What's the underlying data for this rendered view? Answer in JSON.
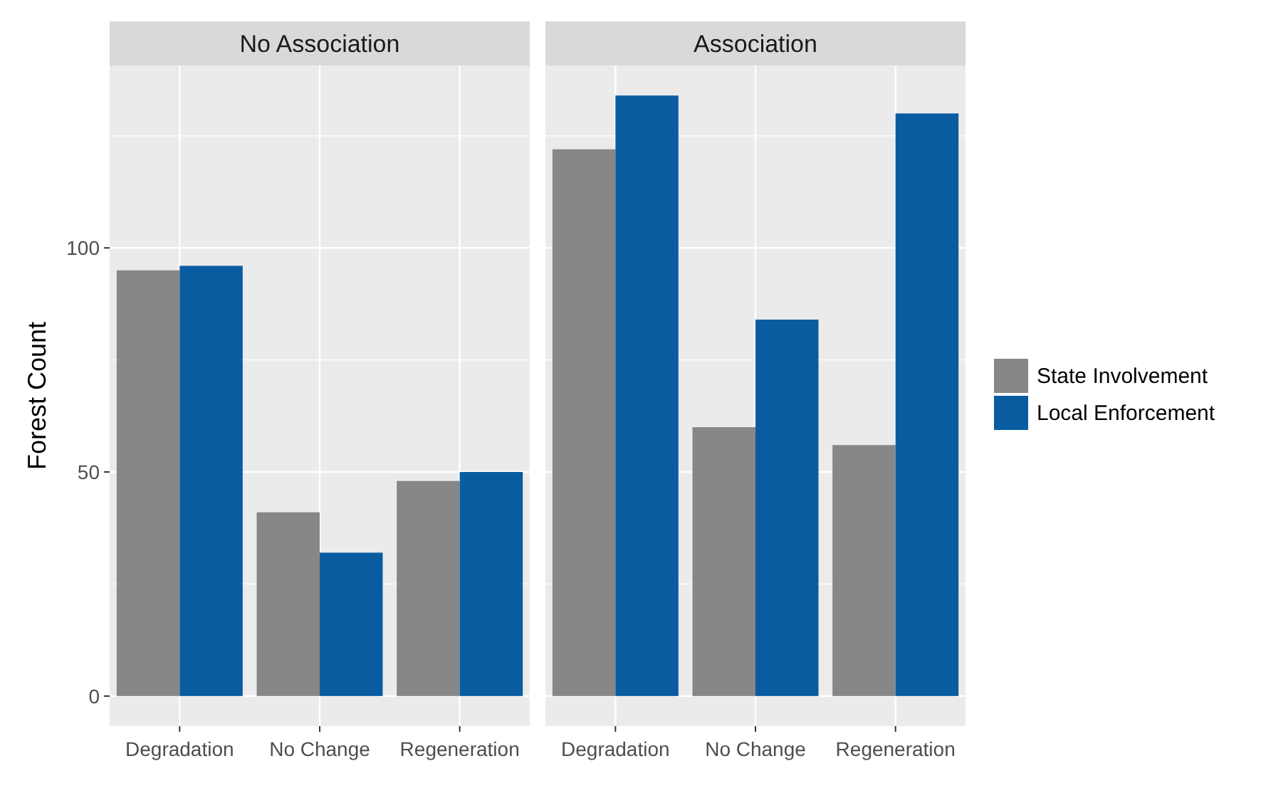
{
  "chart_data": [
    {
      "type": "bar",
      "title": "No Association",
      "ylabel": "Forest Count",
      "categories": [
        "Degradation",
        "No Change",
        "Regeneration"
      ],
      "series": [
        {
          "color": "#878787",
          "values": [
            95,
            41,
            48
          ]
        },
        {
          "color": "#0a5ca0",
          "values": [
            96,
            32,
            50
          ]
        }
      ],
      "ylim": [
        -6.7,
        140.7
      ],
      "yticks": [
        0,
        50,
        100
      ],
      "grid": true,
      "legend": false
    },
    {
      "type": "bar",
      "title": "Association",
      "categories": [
        "Degradation",
        "No Change",
        "Regeneration"
      ],
      "series": [
        {
          "name": "State Involvement",
          "color": "#878787",
          "values": [
            122,
            60,
            56
          ]
        },
        {
          "name": "Local Enforcement",
          "color": "#0a5ca0",
          "values": [
            134,
            84,
            130
          ]
        }
      ],
      "ylim": [
        -6.7,
        140.7
      ],
      "yticks": [
        0,
        50,
        100
      ],
      "grid": true,
      "legend": "right",
      "tick_labels": "x"
    }
  ]
}
